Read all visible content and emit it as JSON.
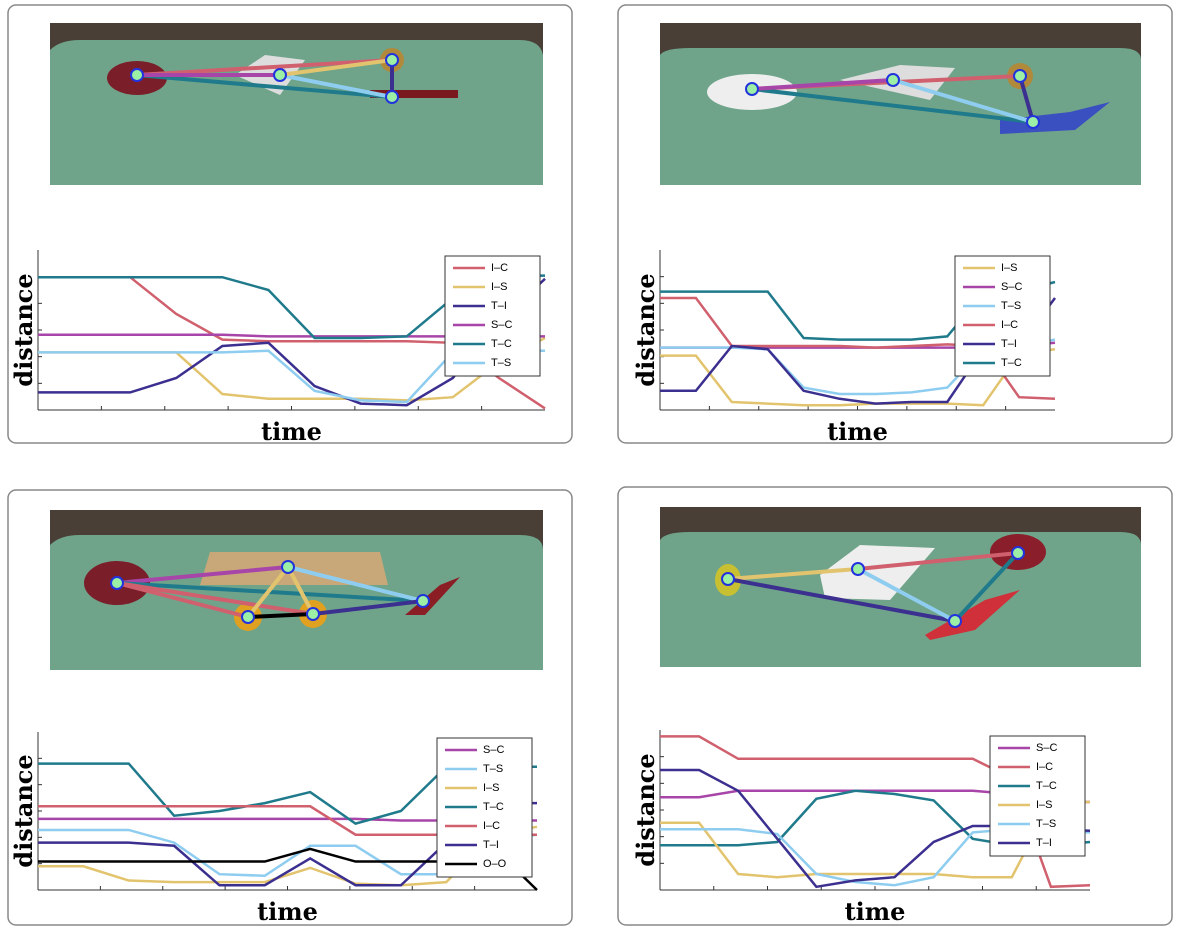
{
  "chart_data": [
    {
      "type": "line",
      "x_label": "time",
      "y_label": "distance",
      "ylim": [
        0,
        100
      ],
      "legend": "upper right",
      "series": [
        {
          "name": "I–C",
          "color": "#d0606e",
          "values": [
            83,
            83,
            83,
            60,
            44,
            43,
            43,
            43,
            43,
            42,
            20,
            1
          ]
        },
        {
          "name": "I–S",
          "color": "#e3c46e",
          "values": [
            36,
            36,
            36,
            36,
            10,
            7,
            7,
            7,
            6,
            8,
            30,
            45
          ]
        },
        {
          "name": "T–I",
          "color": "#3b2f8f",
          "values": [
            11,
            11,
            11,
            20,
            40,
            42,
            15,
            4,
            3,
            20,
            55,
            82
          ]
        },
        {
          "name": "S–C",
          "color": "#a845a8",
          "values": [
            47,
            47,
            47,
            47,
            47,
            46,
            46,
            46,
            46,
            46,
            46,
            46
          ]
        },
        {
          "name": "T–C",
          "color": "#1f7a8c",
          "values": [
            83,
            83,
            83,
            83,
            83,
            75,
            45,
            45,
            46,
            70,
            84,
            84
          ]
        },
        {
          "name": "T–S",
          "color": "#8ecdf0",
          "values": [
            36,
            36,
            36,
            36,
            36,
            37,
            12,
            6,
            5,
            36,
            37,
            37
          ]
        }
      ]
    },
    {
      "type": "line",
      "x_label": "time",
      "y_label": "distance",
      "ylim": [
        0,
        100
      ],
      "legend": "upper right",
      "series": [
        {
          "name": "I–S",
          "color": "#e3c46e",
          "values": [
            34,
            34,
            5,
            4,
            3,
            3,
            4,
            4,
            4,
            3,
            35,
            38
          ]
        },
        {
          "name": "S–C",
          "color": "#a845a8",
          "values": [
            39,
            39,
            39,
            39,
            39,
            39,
            39,
            39,
            39,
            39,
            40,
            42
          ]
        },
        {
          "name": "T–S",
          "color": "#8ecdf0",
          "values": [
            39,
            39,
            39,
            38,
            14,
            10,
            10,
            11,
            14,
            38,
            40,
            44
          ]
        },
        {
          "name": "I–C",
          "color": "#d0606e",
          "values": [
            70,
            70,
            40,
            40,
            40,
            40,
            39,
            40,
            41,
            40,
            8,
            7
          ]
        },
        {
          "name": "T–I",
          "color": "#3b2f8f",
          "values": [
            12,
            12,
            40,
            38,
            12,
            7,
            4,
            5,
            5,
            38,
            40,
            70
          ]
        },
        {
          "name": "T–C",
          "color": "#1f7a8c",
          "values": [
            74,
            74,
            74,
            74,
            45,
            44,
            44,
            44,
            46,
            73,
            74,
            80
          ]
        }
      ]
    },
    {
      "type": "line",
      "x_label": "time",
      "y_label": "distance",
      "ylim": [
        0,
        100
      ],
      "legend": "upper right",
      "series": [
        {
          "name": "S–C",
          "color": "#a845a8",
          "values": [
            45,
            45,
            45,
            45,
            45,
            45,
            45,
            45,
            44,
            44,
            44,
            44
          ]
        },
        {
          "name": "T–S",
          "color": "#8ecdf0",
          "values": [
            38,
            38,
            38,
            30,
            10,
            9,
            28,
            28,
            10,
            10,
            32,
            35
          ]
        },
        {
          "name": "I–S",
          "color": "#e3c46e",
          "values": [
            15,
            15,
            6,
            5,
            5,
            5,
            14,
            4,
            3,
            5,
            35,
            40
          ]
        },
        {
          "name": "T–C",
          "color": "#1f7a8c",
          "values": [
            80,
            80,
            80,
            47,
            50,
            55,
            62,
            42,
            50,
            78,
            78,
            78
          ]
        },
        {
          "name": "I–C",
          "color": "#d0606e",
          "values": [
            53,
            53,
            53,
            53,
            53,
            53,
            53,
            35,
            35,
            35,
            35,
            35
          ]
        },
        {
          "name": "T–I",
          "color": "#3b2f8f",
          "values": [
            30,
            30,
            30,
            28,
            3,
            3,
            20,
            3,
            3,
            30,
            55,
            55
          ]
        },
        {
          "name": "O–O",
          "color": "#000000",
          "values": [
            18,
            18,
            18,
            18,
            18,
            18,
            26,
            18,
            18,
            18,
            28,
            0
          ]
        }
      ]
    },
    {
      "type": "line",
      "x_label": "time",
      "y_label": "distance",
      "ylim": [
        0,
        100
      ],
      "legend": "upper right",
      "series": [
        {
          "name": "S–C",
          "color": "#a845a8",
          "values": [
            58,
            58,
            62,
            62,
            62,
            62,
            62,
            62,
            62,
            60,
            55,
            55
          ]
        },
        {
          "name": "I–C",
          "color": "#d0606e",
          "values": [
            96,
            96,
            82,
            82,
            82,
            82,
            82,
            82,
            82,
            70,
            2,
            3
          ]
        },
        {
          "name": "T–C",
          "color": "#1f7a8c",
          "values": [
            28,
            28,
            28,
            30,
            57,
            62,
            60,
            56,
            32,
            28,
            28,
            30
          ]
        },
        {
          "name": "I–S",
          "color": "#e3c46e",
          "values": [
            42,
            42,
            10,
            8,
            10,
            10,
            10,
            10,
            8,
            8,
            55,
            55
          ]
        },
        {
          "name": "T–S",
          "color": "#8ecdf0",
          "values": [
            38,
            38,
            38,
            35,
            10,
            5,
            3,
            8,
            36,
            38,
            36,
            36
          ]
        },
        {
          "name": "T–I",
          "color": "#3b2f8f",
          "values": [
            75,
            75,
            62,
            32,
            2,
            6,
            8,
            30,
            40,
            40,
            38,
            37
          ]
        }
      ]
    }
  ]
}
